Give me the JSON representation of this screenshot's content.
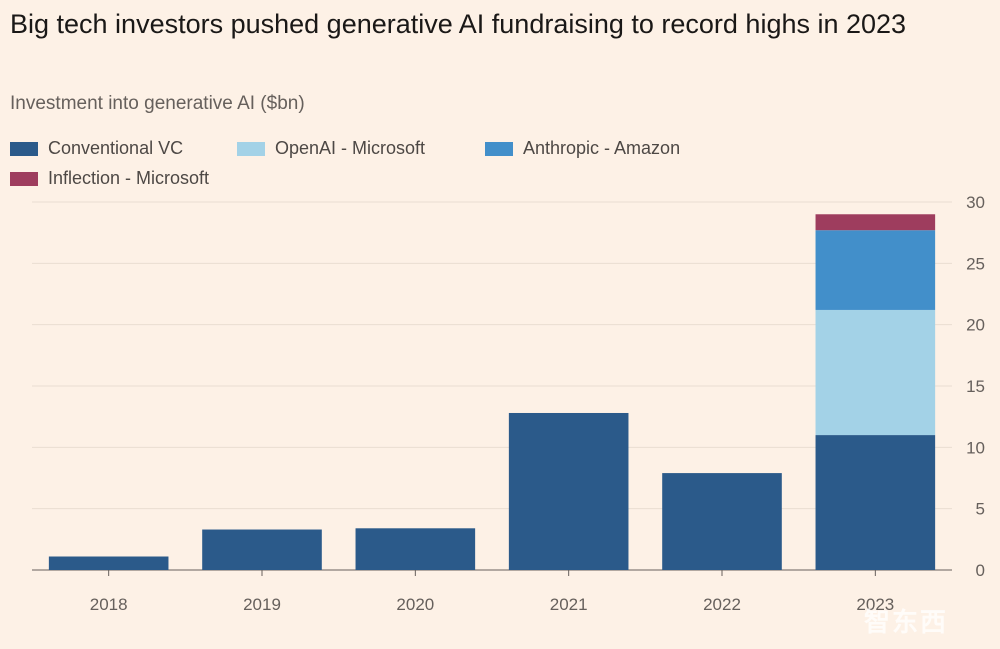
{
  "chart_data": {
    "type": "bar",
    "stacked": true,
    "title": "Big tech investors pushed generative AI fundraising to record highs in 2023",
    "subtitle": "Investment into generative AI ($bn)",
    "categories": [
      "2018",
      "2019",
      "2020",
      "2021",
      "2022",
      "2023"
    ],
    "series": [
      {
        "name": "Conventional VC",
        "color": "#2b5a8a",
        "values": [
          1.1,
          3.3,
          3.4,
          12.8,
          7.9,
          11.0
        ]
      },
      {
        "name": "OpenAI - Microsoft",
        "color": "#a3d2e7",
        "values": [
          0,
          0,
          0,
          0,
          0,
          10.2
        ]
      },
      {
        "name": "Anthropic - Amazon",
        "color": "#428fca",
        "values": [
          0,
          0,
          0,
          0,
          0,
          6.5
        ]
      },
      {
        "name": "Inflection - Microsoft",
        "color": "#9e3d5e",
        "values": [
          0,
          0,
          0,
          0,
          0,
          1.3
        ]
      }
    ],
    "yticks": [
      0,
      5,
      10,
      15,
      20,
      25,
      30
    ],
    "ylim": [
      0,
      30
    ],
    "y_axis_side": "right",
    "grid": true,
    "legend_position": "top-left"
  },
  "watermark": "智东西"
}
